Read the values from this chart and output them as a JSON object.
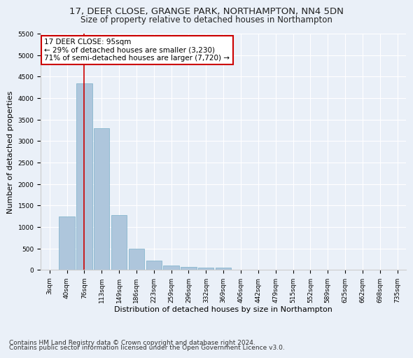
{
  "title1": "17, DEER CLOSE, GRANGE PARK, NORTHAMPTON, NN4 5DN",
  "title2": "Size of property relative to detached houses in Northampton",
  "xlabel": "Distribution of detached houses by size in Northampton",
  "ylabel": "Number of detached properties",
  "footnote1": "Contains HM Land Registry data © Crown copyright and database right 2024.",
  "footnote2": "Contains public sector information licensed under the Open Government Licence v3.0.",
  "categories": [
    "3sqm",
    "40sqm",
    "76sqm",
    "113sqm",
    "149sqm",
    "186sqm",
    "223sqm",
    "259sqm",
    "296sqm",
    "332sqm",
    "369sqm",
    "406sqm",
    "442sqm",
    "479sqm",
    "515sqm",
    "552sqm",
    "589sqm",
    "625sqm",
    "662sqm",
    "698sqm",
    "735sqm"
  ],
  "values": [
    0,
    1250,
    4350,
    3300,
    1270,
    490,
    210,
    100,
    75,
    55,
    50,
    0,
    0,
    0,
    0,
    0,
    0,
    0,
    0,
    0,
    0
  ],
  "bar_color": "#aec6dc",
  "bar_edge_color": "#7aafc8",
  "vline_x_index": 2,
  "vline_color": "#cc0000",
  "annotation_text": "17 DEER CLOSE: 95sqm\n← 29% of detached houses are smaller (3,230)\n71% of semi-detached houses are larger (7,720) →",
  "annotation_box_color": "#ffffff",
  "annotation_box_edge_color": "#cc0000",
  "ylim": [
    0,
    5500
  ],
  "yticks": [
    0,
    500,
    1000,
    1500,
    2000,
    2500,
    3000,
    3500,
    4000,
    4500,
    5000,
    5500
  ],
  "bg_color": "#eaf0f8",
  "grid_color": "#ffffff",
  "title1_fontsize": 9.5,
  "title2_fontsize": 8.5,
  "xlabel_fontsize": 8,
  "ylabel_fontsize": 8,
  "tick_fontsize": 6.5,
  "annotation_fontsize": 7.5,
  "footnote_fontsize": 6.5
}
